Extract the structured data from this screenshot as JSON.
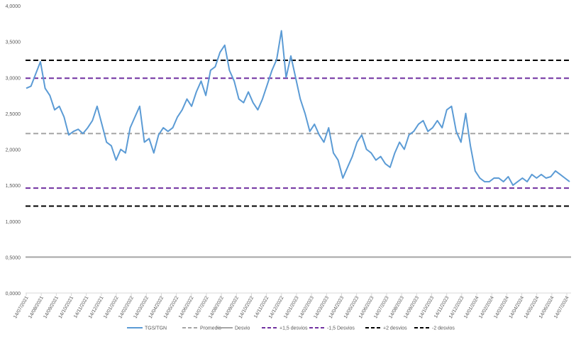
{
  "chart_data": {
    "type": "line",
    "title": "",
    "xlabel": "",
    "ylabel": "",
    "ylim": [
      0,
      4
    ],
    "yticks": [
      "0,0000",
      "0,5000",
      "1,0000",
      "1,5000",
      "2,0000",
      "2,5000",
      "3,0000",
      "3,5000",
      "4,0000"
    ],
    "xticks": [
      "14/07/2021",
      "14/08/2021",
      "14/09/2021",
      "14/10/2021",
      "14/11/2021",
      "14/12/2021",
      "14/01/2022",
      "14/02/2022",
      "14/03/2022",
      "14/04/2022",
      "14/05/2022",
      "14/06/2022",
      "14/07/2022",
      "14/08/2022",
      "14/09/2022",
      "14/10/2022",
      "14/11/2022",
      "14/12/2022",
      "14/01/2023",
      "14/02/2023",
      "14/03/2023",
      "14/04/2023",
      "14/05/2023",
      "14/06/2023",
      "14/07/2023",
      "14/08/2023",
      "14/09/2023",
      "14/10/2023",
      "14/11/2023",
      "14/12/2023",
      "14/01/2024",
      "14/02/2024",
      "14/03/2024",
      "14/04/2024",
      "14/05/2024",
      "14/06/2024",
      "14/07/2024"
    ],
    "grid": false,
    "legend_position": "bottom",
    "series": [
      {
        "name": "TGS/TGN",
        "color": "#5b9bd5",
        "style": "solid",
        "values": [
          2.85,
          2.88,
          3.05,
          3.22,
          2.85,
          2.75,
          2.55,
          2.6,
          2.45,
          2.2,
          2.25,
          2.28,
          2.22,
          2.3,
          2.4,
          2.6,
          2.35,
          2.1,
          2.05,
          1.85,
          2.0,
          1.95,
          2.3,
          2.45,
          2.6,
          2.1,
          2.15,
          1.95,
          2.2,
          2.3,
          2.25,
          2.3,
          2.45,
          2.55,
          2.7,
          2.6,
          2.8,
          2.95,
          2.75,
          3.1,
          3.15,
          3.35,
          3.45,
          3.1,
          2.95,
          2.7,
          2.65,
          2.8,
          2.65,
          2.55,
          2.7,
          2.9,
          3.1,
          3.25,
          3.65,
          3.0,
          3.3,
          3.0,
          2.7,
          2.5,
          2.25,
          2.35,
          2.2,
          2.1,
          2.3,
          1.95,
          1.85,
          1.6,
          1.75,
          1.9,
          2.1,
          2.2,
          2.0,
          1.95,
          1.85,
          1.9,
          1.8,
          1.75,
          1.95,
          2.1,
          2.0,
          2.2,
          2.25,
          2.35,
          2.4,
          2.25,
          2.3,
          2.4,
          2.3,
          2.55,
          2.6,
          2.25,
          2.1,
          2.5,
          2.05,
          1.7,
          1.6,
          1.55,
          1.55,
          1.6,
          1.6,
          1.55,
          1.62,
          1.5,
          1.55,
          1.6,
          1.55,
          1.65,
          1.6,
          1.65,
          1.6,
          1.62,
          1.7,
          1.65,
          1.6,
          1.55
        ]
      },
      {
        "name": "Promedio",
        "color": "#a5a5a5",
        "style": "dashed",
        "value": 2.22
      },
      {
        "name": "Desvio",
        "color": "#a5a5a5",
        "style": "solid",
        "value": 0.5
      },
      {
        "name": "+1,5 desvios",
        "color": "#7030a0",
        "style": "dashed",
        "value": 2.99
      },
      {
        "name": "-1,5 Desvios",
        "color": "#7030a0",
        "style": "dashed",
        "value": 1.46
      },
      {
        "name": "+2 desvios",
        "color": "#000000",
        "style": "dashed",
        "value": 3.24
      },
      {
        "name": "-2 desvios",
        "color": "#000000",
        "style": "dashed",
        "value": 1.21
      }
    ]
  }
}
